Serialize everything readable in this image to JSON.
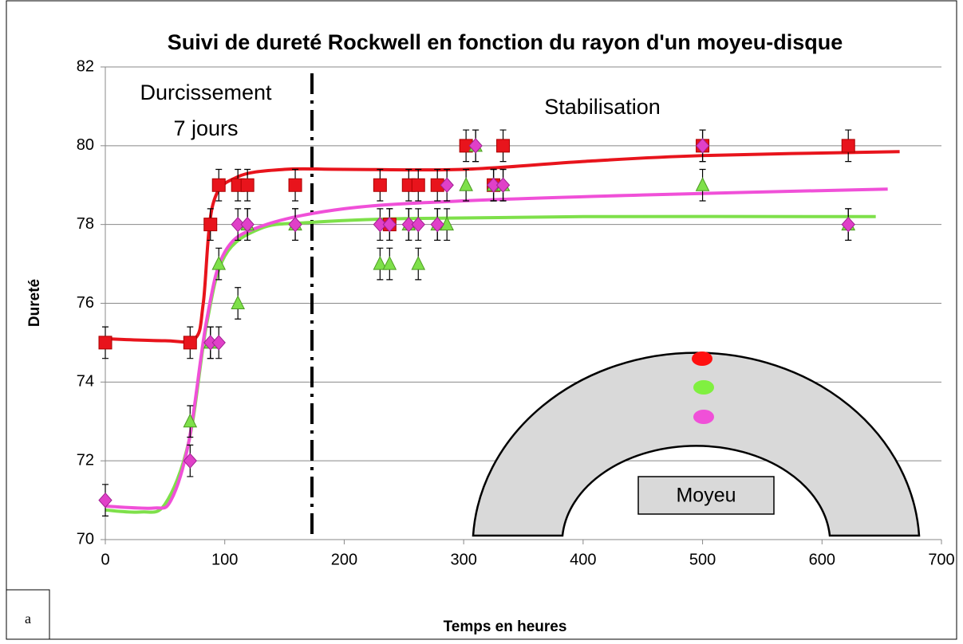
{
  "chart_data": {
    "type": "scatter",
    "title": "Suivi de dureté Rockwell en fonction du rayon d'un moyeu-disque",
    "xlabel": "Temps en heures",
    "ylabel": "Dureté",
    "xlim": [
      0,
      700
    ],
    "xticks": [
      0,
      100,
      200,
      300,
      400,
      500,
      600,
      700
    ],
    "ylim": [
      70,
      82
    ],
    "yticks": [
      70,
      72,
      74,
      76,
      78,
      80,
      82
    ],
    "grid": true,
    "series": [
      {
        "color": "#e8141c",
        "marker": "square",
        "error": 0.4,
        "x": [
          0,
          71,
          88,
          95,
          111,
          119,
          159,
          230,
          238,
          254,
          262,
          278,
          302,
          325,
          333,
          500,
          622
        ],
        "values": [
          75,
          75,
          78,
          79,
          79,
          79,
          79,
          79,
          78,
          79,
          79,
          79,
          80,
          79,
          80,
          80,
          80
        ]
      },
      {
        "color": "#7ee04a",
        "marker": "triangle",
        "error": 0.4,
        "x": [
          71,
          88,
          95,
          111,
          119,
          159,
          230,
          238,
          254,
          262,
          278,
          286,
          302,
          310,
          325,
          333,
          500,
          622
        ],
        "values": [
          73,
          75,
          77,
          76,
          78,
          78,
          77,
          77,
          78,
          77,
          78,
          78,
          79,
          80,
          79,
          79,
          79,
          78
        ]
      },
      {
        "color": "#e040c8",
        "marker": "diamond",
        "error": 0.4,
        "x": [
          0,
          71,
          88,
          95,
          111,
          119,
          159,
          230,
          238,
          254,
          262,
          278,
          286,
          310,
          325,
          333,
          500,
          622
        ],
        "values": [
          71,
          72,
          75,
          75,
          78,
          78,
          78,
          78,
          78,
          78,
          78,
          78,
          79,
          80,
          79,
          79,
          80,
          78
        ]
      }
    ],
    "trendlines": [
      {
        "color": "#e8141c",
        "x": [
          0,
          50,
          75,
          82,
          90,
          110,
          150,
          200,
          300,
          400,
          500,
          665
        ],
        "values": [
          75.1,
          75.05,
          75.1,
          76,
          78.5,
          79.2,
          79.4,
          79.4,
          79.4,
          79.6,
          79.75,
          79.85
        ]
      },
      {
        "color": "#7ee04a",
        "x": [
          0,
          30,
          50,
          70,
          85,
          100,
          130,
          170,
          250,
          400,
          645
        ],
        "values": [
          70.75,
          70.7,
          70.9,
          72.5,
          75.5,
          77.2,
          77.9,
          78.05,
          78.15,
          78.2,
          78.2
        ]
      },
      {
        "color": "#f050d8",
        "x": [
          0,
          40,
          55,
          70,
          85,
          100,
          130,
          200,
          300,
          450,
          655
        ],
        "values": [
          70.85,
          70.8,
          71,
          72.5,
          75.6,
          77.3,
          77.95,
          78.4,
          78.6,
          78.75,
          78.9
        ]
      }
    ],
    "divider_x": 173,
    "annotations": [
      "Durcissement",
      "7 jours",
      "Stabilisation"
    ],
    "inset_label": "Moyeu",
    "panel_label": "a"
  }
}
